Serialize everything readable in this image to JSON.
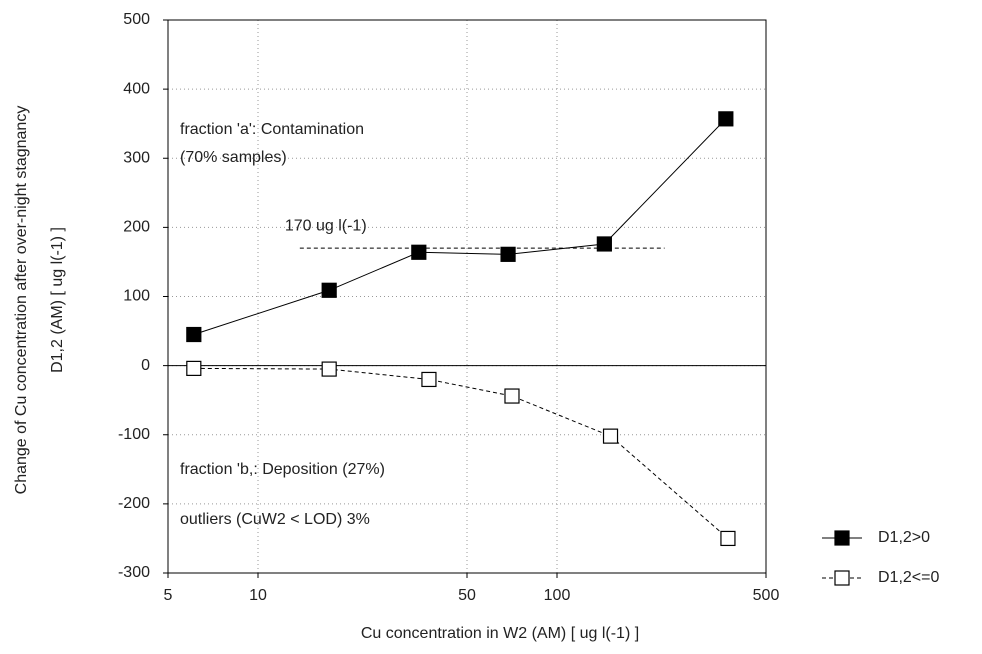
{
  "chart_data": {
    "type": "line",
    "xlabel": "Cu concentration in W2 (AM) [ ug l(-1) ]",
    "ylabel": [
      "Change of Cu concentration after over-night stagnancy",
      "D1,2 (AM) [ ug l(-1) ]"
    ],
    "xscale": "log",
    "xlim": [
      5,
      500
    ],
    "xticks": [
      5,
      10,
      50,
      100,
      500
    ],
    "ylim": [
      -300,
      500
    ],
    "yticks": [
      -300,
      -200,
      -100,
      0,
      100,
      200,
      300,
      400,
      500
    ],
    "grid": true,
    "legend": "right",
    "series": [
      {
        "name": "D1,2>0",
        "color": "#000000",
        "marker": "filled-square",
        "linestyle": "solid",
        "x": [
          6.1,
          17.3,
          34.5,
          68.6,
          144,
          367
        ],
        "values": [
          45,
          109,
          164,
          161,
          176,
          357
        ]
      },
      {
        "name": "D1,2<=0",
        "color": "#000000",
        "marker": "open-square",
        "linestyle": "dashed",
        "x": [
          6.1,
          17.3,
          37.3,
          70.7,
          151,
          373
        ],
        "values": [
          -4,
          -5,
          -20,
          -44,
          -102,
          -250
        ]
      }
    ],
    "reference_line": {
      "label": "170 ug l(-1)",
      "value": 170,
      "x": [
        13.8,
        229
      ]
    },
    "annotations": [
      "fraction 'a': Contamination",
      "(70% samples)",
      "fraction 'b,: Deposition (27%)",
      "outliers (CuW2 < LOD) 3%"
    ]
  }
}
